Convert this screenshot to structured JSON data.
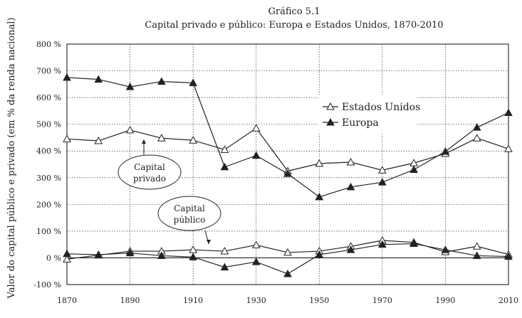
{
  "chart_data": {
    "type": "line",
    "title": "Gráfico 5.1",
    "subtitle": "Capital privado e público: Europa e Estados Unidos, 1870-2010",
    "ylabel": "Valor do capital público e privado (em % da renda nacional)",
    "xlabel": "",
    "ylim": [
      -100,
      800
    ],
    "y_ticks": [
      -100,
      0,
      100,
      200,
      300,
      400,
      500,
      600,
      700,
      800
    ],
    "y_tick_labels": [
      "-100 %",
      "0 %",
      "100 %",
      "200 %",
      "300 %",
      "400 %",
      "500 %",
      "600 %",
      "700 %",
      "800 %"
    ],
    "xlim": [
      1870,
      2010
    ],
    "x_ticks": [
      1870,
      1890,
      1910,
      1930,
      1950,
      1970,
      1990,
      2010
    ],
    "x_tick_labels": [
      "1870",
      "1890",
      "1910",
      "1930",
      "1950",
      "1970",
      "1990",
      "2010"
    ],
    "x": [
      1870,
      1880,
      1890,
      1900,
      1910,
      1920,
      1930,
      1940,
      1950,
      1960,
      1970,
      1980,
      1990,
      2000,
      2010
    ],
    "grid": true,
    "legend_position": "upper-right",
    "legend": [
      "Estados Unidos",
      "Europa"
    ],
    "series": [
      {
        "name": "Estados Unidos",
        "group": "Capital privado",
        "marker": "open-triangle",
        "color": "#222222",
        "values": [
          445,
          438,
          478,
          448,
          440,
          405,
          485,
          325,
          353,
          358,
          328,
          355,
          390,
          448,
          408
        ]
      },
      {
        "name": "Europa",
        "group": "Capital privado",
        "marker": "filled-triangle",
        "color": "#222222",
        "values": [
          675,
          668,
          640,
          660,
          655,
          340,
          383,
          315,
          228,
          265,
          283,
          330,
          398,
          488,
          543
        ]
      },
      {
        "name": "Estados Unidos",
        "group": "Capital público",
        "marker": "open-triangle",
        "color": "#222222",
        "values": [
          -5,
          10,
          25,
          25,
          30,
          25,
          48,
          20,
          25,
          43,
          65,
          58,
          22,
          43,
          13
        ]
      },
      {
        "name": "Europa",
        "group": "Capital público",
        "marker": "filled-triangle",
        "color": "#222222",
        "values": [
          15,
          12,
          18,
          8,
          3,
          -35,
          -15,
          -60,
          12,
          30,
          50,
          53,
          30,
          8,
          5
        ]
      }
    ],
    "annotations": [
      {
        "lines": [
          "Capital",
          "privado"
        ]
      },
      {
        "lines": [
          "Capital",
          "público"
        ]
      }
    ]
  }
}
